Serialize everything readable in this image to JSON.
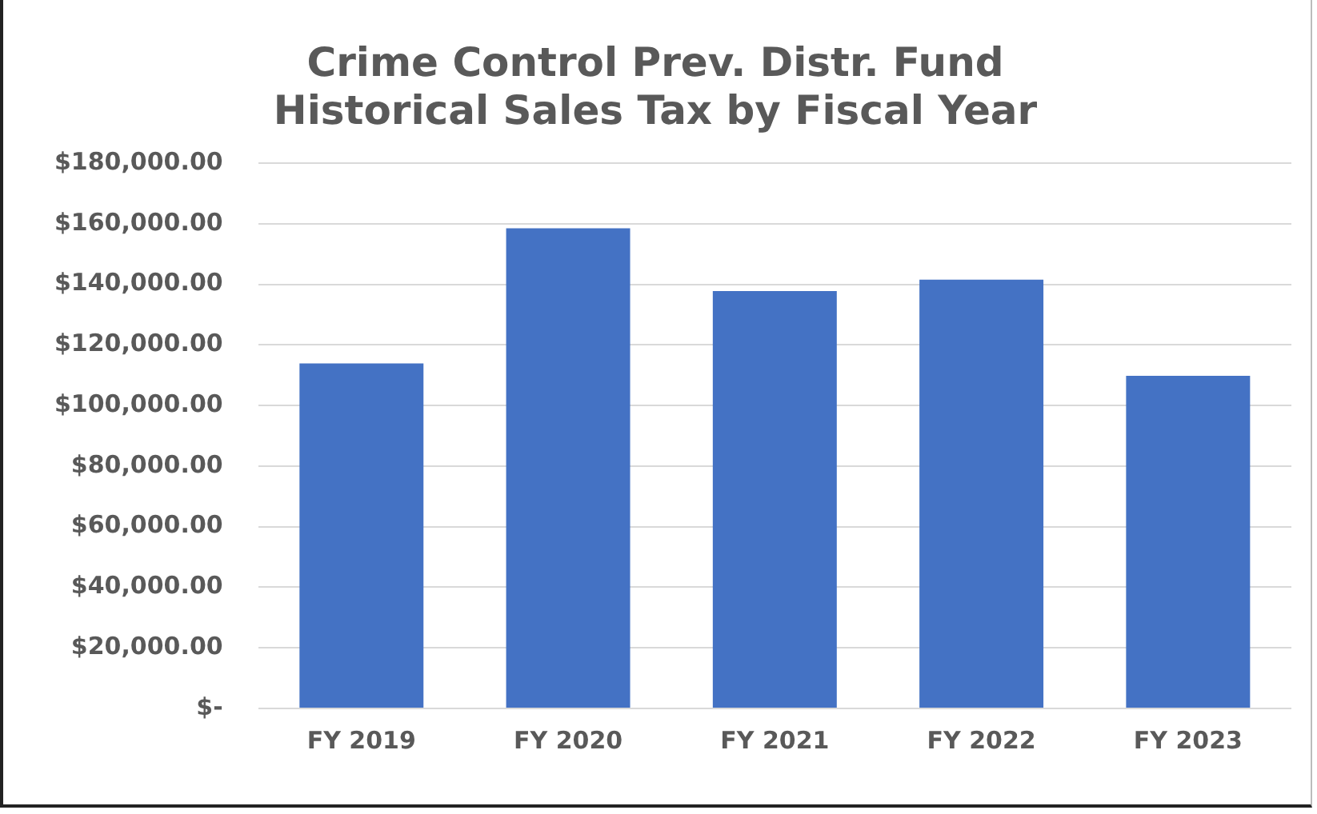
{
  "chart_data": {
    "type": "bar",
    "title": "Crime Control Prev. Distr. Fund\nHistorical Sales Tax by Fiscal Year",
    "categories": [
      "FY 2019",
      "FY 2020",
      "FY 2021",
      "FY 2022",
      "FY 2023"
    ],
    "values": [
      113900,
      158500,
      137800,
      141500,
      109800
    ],
    "color": "#4472c4",
    "ylim": [
      0,
      180000
    ],
    "yticks": [
      {
        "value": 0,
        "label": "$-"
      },
      {
        "value": 20000,
        "label": "$20,000.00"
      },
      {
        "value": 40000,
        "label": "$40,000.00"
      },
      {
        "value": 60000,
        "label": "$60,000.00"
      },
      {
        "value": 80000,
        "label": "$80,000.00"
      },
      {
        "value": 100000,
        "label": "$100,000.00"
      },
      {
        "value": 120000,
        "label": "$120,000.00"
      },
      {
        "value": 140000,
        "label": "$140,000.00"
      },
      {
        "value": 160000,
        "label": "$160,000.00"
      },
      {
        "value": 180000,
        "label": "$180,000.00"
      }
    ],
    "grid": "y",
    "legend": false
  }
}
